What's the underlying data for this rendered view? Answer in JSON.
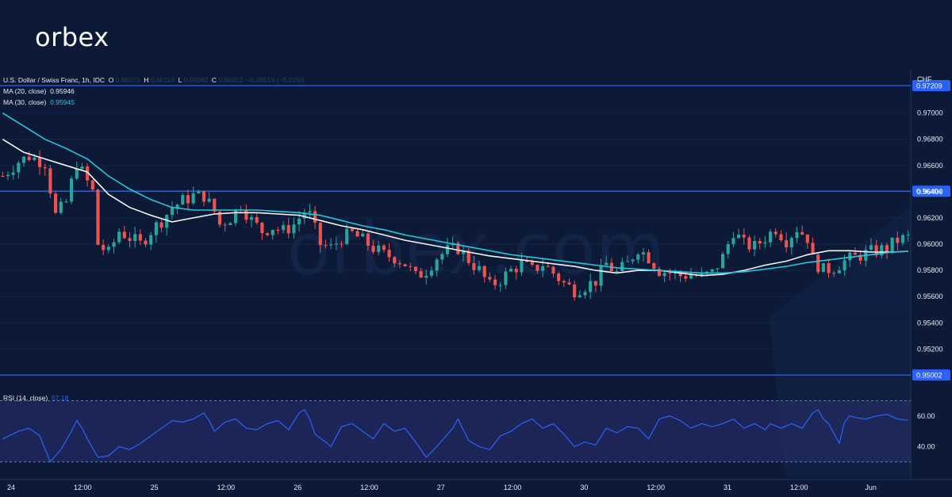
{
  "brand": {
    "logo_text": "orbex"
  },
  "legend": {
    "symbol": "U.S. Dollar / Swiss Franc, 1h, IDC",
    "o_label": "O",
    "o_value": "0.96073",
    "h_label": "H",
    "h_value": "0.96114",
    "l_label": "L",
    "l_value": "0.95960",
    "c_label": "C",
    "c_value": "0.96052",
    "change": "−0.00019 (−0.02%)",
    "ma20_label": "MA (20, close)",
    "ma20_value": "0.95946",
    "ma30_label": "MA (30, close)",
    "ma30_value": "0.95945",
    "rsi_label": "RSI (14, close)",
    "rsi_value": "57.18"
  },
  "watermark": "orbex.com",
  "colors": {
    "background": "#0c1a38",
    "up": "#26a69a",
    "down": "#ef5350",
    "ma20": "#f5f5f5",
    "ma30": "#26c6da",
    "levels": "#2962ff",
    "rsi": "#2962ff",
    "rsi_band": "#2a2f6e"
  },
  "chart_data": [
    {
      "type": "candlestick",
      "title": "U.S. Dollar / Swiss Franc, 1h, IDC",
      "unit": "CHF",
      "ylim": [
        0.949,
        0.9733
      ],
      "y_ticks": [
        "0.97000",
        "0.96800",
        "0.96600",
        "0.96400",
        "0.96200",
        "0.96000",
        "0.95800",
        "0.95600",
        "0.95400",
        "0.95200"
      ],
      "x_ticks": [
        "24",
        "12:00",
        "25",
        "12:00",
        "26",
        "12:00",
        "27",
        "12:00",
        "30",
        "12:00",
        "31",
        "12:00",
        "Jun"
      ],
      "horizontal_levels": [
        {
          "value": 0.97209,
          "label": "0.97209"
        },
        {
          "value": 0.96404,
          "label": "0.96404"
        },
        {
          "value": 0.95002,
          "label": "0.95002"
        }
      ],
      "close_path": [
        [
          0,
          0.9652
        ],
        [
          3,
          0.9663
        ],
        [
          5,
          0.9667
        ],
        [
          8,
          0.9662
        ],
        [
          10,
          0.9622
        ],
        [
          12,
          0.9632
        ],
        [
          14,
          0.9662
        ],
        [
          15,
          0.9655
        ],
        [
          17,
          0.964
        ],
        [
          18,
          0.96
        ],
        [
          20,
          0.9593
        ],
        [
          22,
          0.961
        ],
        [
          24,
          0.9605
        ],
        [
          26,
          0.96
        ],
        [
          28,
          0.961
        ],
        [
          30,
          0.9618
        ],
        [
          32,
          0.9628
        ],
        [
          34,
          0.9633
        ],
        [
          36,
          0.9637
        ],
        [
          38,
          0.9637
        ],
        [
          40,
          0.9625
        ],
        [
          41,
          0.9615
        ],
        [
          43,
          0.962
        ],
        [
          45,
          0.963
        ],
        [
          47,
          0.9618
        ],
        [
          49,
          0.961
        ],
        [
          51,
          0.9613
        ],
        [
          53,
          0.961
        ],
        [
          55,
          0.9615
        ],
        [
          57,
          0.9625
        ],
        [
          58,
          0.9622
        ],
        [
          60,
          0.96
        ],
        [
          62,
          0.9597
        ],
        [
          64,
          0.9605
        ],
        [
          66,
          0.9608
        ],
        [
          68,
          0.9603
        ],
        [
          70,
          0.9597
        ],
        [
          72,
          0.9592
        ],
        [
          74,
          0.959
        ],
        [
          76,
          0.9585
        ],
        [
          78,
          0.9575
        ],
        [
          80,
          0.958
        ],
        [
          82,
          0.959
        ],
        [
          84,
          0.9595
        ],
        [
          86,
          0.9597
        ],
        [
          88,
          0.9588
        ],
        [
          90,
          0.958
        ],
        [
          92,
          0.9568
        ],
        [
          94,
          0.9573
        ],
        [
          96,
          0.958
        ],
        [
          98,
          0.9585
        ],
        [
          100,
          0.958
        ],
        [
          102,
          0.9585
        ],
        [
          104,
          0.9578
        ],
        [
          106,
          0.957
        ],
        [
          108,
          0.9565
        ],
        [
          110,
          0.9568
        ],
        [
          112,
          0.9572
        ],
        [
          114,
          0.9585
        ],
        [
          116,
          0.9578
        ],
        [
          118,
          0.9585
        ],
        [
          120,
          0.9597
        ],
        [
          122,
          0.959
        ],
        [
          124,
          0.958
        ],
        [
          126,
          0.9578
        ],
        [
          128,
          0.9576
        ],
        [
          130,
          0.9577
        ],
        [
          132,
          0.9575
        ],
        [
          134,
          0.9578
        ],
        [
          136,
          0.959
        ],
        [
          138,
          0.961
        ],
        [
          140,
          0.96
        ],
        [
          142,
          0.9598
        ],
        [
          144,
          0.9605
        ],
        [
          146,
          0.9612
        ],
        [
          148,
          0.9603
        ],
        [
          150,
          0.9612
        ],
        [
          152,
          0.9605
        ],
        [
          153,
          0.9588
        ],
        [
          155,
          0.958
        ],
        [
          157,
          0.9582
        ],
        [
          159,
          0.9587
        ],
        [
          161,
          0.959
        ],
        [
          163,
          0.9593
        ],
        [
          165,
          0.9595
        ],
        [
          167,
          0.9597
        ],
        [
          169,
          0.9603
        ],
        [
          171,
          0.9605
        ]
      ],
      "series": [
        {
          "name": "MA (20, close)",
          "values": [
            [
              0,
              0.968
            ],
            [
              4,
              0.967
            ],
            [
              8,
              0.9665
            ],
            [
              12,
              0.966
            ],
            [
              16,
              0.9655
            ],
            [
              20,
              0.9638
            ],
            [
              24,
              0.9628
            ],
            [
              28,
              0.9622
            ],
            [
              32,
              0.9617
            ],
            [
              36,
              0.962
            ],
            [
              40,
              0.9623
            ],
            [
              44,
              0.9624
            ],
            [
              48,
              0.9624
            ],
            [
              52,
              0.9623
            ],
            [
              56,
              0.9622
            ],
            [
              60,
              0.9618
            ],
            [
              64,
              0.9614
            ],
            [
              68,
              0.9611
            ],
            [
              72,
              0.9607
            ],
            [
              76,
              0.9603
            ],
            [
              80,
              0.96
            ],
            [
              84,
              0.9597
            ],
            [
              88,
              0.9594
            ],
            [
              92,
              0.9591
            ],
            [
              96,
              0.9589
            ],
            [
              100,
              0.9587
            ],
            [
              104,
              0.9585
            ],
            [
              108,
              0.9583
            ],
            [
              112,
              0.958
            ],
            [
              116,
              0.9578
            ],
            [
              120,
              0.958
            ],
            [
              124,
              0.958
            ],
            [
              128,
              0.9578
            ],
            [
              132,
              0.9576
            ],
            [
              136,
              0.9577
            ],
            [
              140,
              0.958
            ],
            [
              144,
              0.9584
            ],
            [
              148,
              0.9587
            ],
            [
              152,
              0.9592
            ],
            [
              156,
              0.9595
            ],
            [
              160,
              0.9595
            ],
            [
              164,
              0.9594
            ],
            [
              168,
              0.9594
            ],
            [
              171,
              0.95946
            ]
          ]
        },
        {
          "name": "MA (30, close)",
          "values": [
            [
              0,
              0.97
            ],
            [
              4,
              0.969
            ],
            [
              8,
              0.968
            ],
            [
              12,
              0.9673
            ],
            [
              16,
              0.9665
            ],
            [
              20,
              0.9652
            ],
            [
              24,
              0.9642
            ],
            [
              28,
              0.9634
            ],
            [
              32,
              0.9628
            ],
            [
              36,
              0.9626
            ],
            [
              40,
              0.9626
            ],
            [
              44,
              0.9626
            ],
            [
              48,
              0.9626
            ],
            [
              52,
              0.9625
            ],
            [
              56,
              0.9624
            ],
            [
              60,
              0.9622
            ],
            [
              64,
              0.9618
            ],
            [
              68,
              0.9614
            ],
            [
              72,
              0.9611
            ],
            [
              76,
              0.9607
            ],
            [
              80,
              0.9604
            ],
            [
              84,
              0.9601
            ],
            [
              88,
              0.9598
            ],
            [
              92,
              0.9595
            ],
            [
              96,
              0.9592
            ],
            [
              100,
              0.959
            ],
            [
              104,
              0.9588
            ],
            [
              108,
              0.9586
            ],
            [
              112,
              0.9584
            ],
            [
              116,
              0.9582
            ],
            [
              120,
              0.9581
            ],
            [
              124,
              0.958
            ],
            [
              128,
              0.9579
            ],
            [
              132,
              0.9578
            ],
            [
              136,
              0.9578
            ],
            [
              140,
              0.9579
            ],
            [
              144,
              0.9581
            ],
            [
              148,
              0.9583
            ],
            [
              152,
              0.9586
            ],
            [
              156,
              0.9588
            ],
            [
              160,
              0.959
            ],
            [
              164,
              0.9592
            ],
            [
              168,
              0.9594
            ],
            [
              171,
              0.95945
            ]
          ]
        }
      ]
    },
    {
      "type": "line",
      "title": "RSI (14, close)",
      "ylim": [
        20,
        78
      ],
      "y_ticks": [
        "60.00",
        "40.00"
      ],
      "band": [
        30,
        70
      ],
      "series": [
        {
          "name": "RSI (14, close)",
          "values": [
            [
              0,
              45
            ],
            [
              3,
              50
            ],
            [
              5,
              52
            ],
            [
              7,
              47
            ],
            [
              9,
              30
            ],
            [
              11,
              38
            ],
            [
              13,
              50
            ],
            [
              14,
              57
            ],
            [
              15,
              52
            ],
            [
              16,
              45
            ],
            [
              18,
              33
            ],
            [
              20,
              34
            ],
            [
              22,
              40
            ],
            [
              24,
              38
            ],
            [
              26,
              42
            ],
            [
              28,
              47
            ],
            [
              30,
              52
            ],
            [
              32,
              57
            ],
            [
              34,
              56
            ],
            [
              36,
              58
            ],
            [
              38,
              62
            ],
            [
              39,
              57
            ],
            [
              40,
              50
            ],
            [
              42,
              56
            ],
            [
              44,
              58
            ],
            [
              46,
              52
            ],
            [
              48,
              51
            ],
            [
              50,
              55
            ],
            [
              52,
              57
            ],
            [
              54,
              51
            ],
            [
              56,
              62
            ],
            [
              57,
              64
            ],
            [
              58,
              58
            ],
            [
              59,
              48
            ],
            [
              61,
              43
            ],
            [
              62,
              40
            ],
            [
              64,
              53
            ],
            [
              66,
              55
            ],
            [
              68,
              50
            ],
            [
              70,
              45
            ],
            [
              72,
              55
            ],
            [
              74,
              50
            ],
            [
              76,
              52
            ],
            [
              78,
              43
            ],
            [
              80,
              33
            ],
            [
              82,
              40
            ],
            [
              84,
              48
            ],
            [
              85,
              52
            ],
            [
              86,
              58
            ],
            [
              88,
              44
            ],
            [
              90,
              40
            ],
            [
              92,
              38
            ],
            [
              94,
              47
            ],
            [
              96,
              50
            ],
            [
              98,
              55
            ],
            [
              100,
              58
            ],
            [
              102,
              52
            ],
            [
              104,
              55
            ],
            [
              106,
              48
            ],
            [
              108,
              40
            ],
            [
              110,
              43
            ],
            [
              112,
              41
            ],
            [
              114,
              52
            ],
            [
              116,
              49
            ],
            [
              118,
              53
            ],
            [
              120,
              52
            ],
            [
              122,
              45
            ],
            [
              124,
              58
            ],
            [
              126,
              60
            ],
            [
              128,
              57
            ],
            [
              130,
              52
            ],
            [
              132,
              55
            ],
            [
              134,
              53
            ],
            [
              136,
              55
            ],
            [
              138,
              58
            ],
            [
              140,
              52
            ],
            [
              142,
              55
            ],
            [
              144,
              51
            ],
            [
              145,
              55
            ],
            [
              147,
              52
            ],
            [
              149,
              55
            ],
            [
              151,
              52
            ],
            [
              153,
              62
            ],
            [
              154,
              64
            ],
            [
              155,
              58
            ],
            [
              156,
              55
            ],
            [
              158,
              42
            ],
            [
              159,
              56
            ],
            [
              160,
              60
            ],
            [
              161,
              59
            ],
            [
              163,
              58
            ],
            [
              165,
              60
            ],
            [
              167,
              61
            ],
            [
              169,
              58
            ],
            [
              171,
              57.18
            ]
          ]
        }
      ]
    }
  ]
}
